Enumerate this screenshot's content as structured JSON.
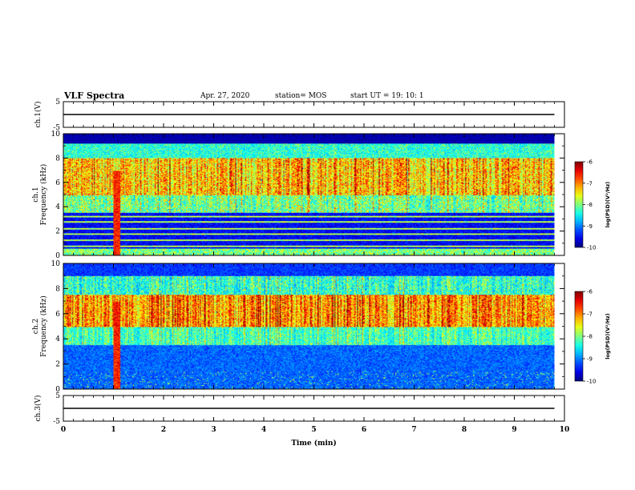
{
  "header": {
    "title": "VLF Spectra",
    "date": "Apr. 27, 2020",
    "station": "station= MOS",
    "start": "start  UT =   19: 10: 1"
  },
  "chart_data": {
    "type": "heatmap",
    "xlabel": "Time  (min)",
    "xlim": [
      0,
      10
    ],
    "x_ticks": [
      "0",
      "1",
      "2",
      "3",
      "4",
      "5",
      "6",
      "7",
      "8",
      "9",
      "10"
    ],
    "panels": [
      {
        "id": "ch1-waveform",
        "type": "line",
        "ylabel": "ch.1(V)",
        "ylim": [
          -5,
          5
        ],
        "y_ticks": [
          "5",
          "-5"
        ],
        "value": 0,
        "x_end": 9.8
      },
      {
        "id": "ch1-spectrogram",
        "type": "heatmap",
        "ylabel": "ch.1\nFrequency (kHz)",
        "ylim": [
          0,
          10
        ],
        "y_ticks": [
          "0",
          "2",
          "4",
          "6",
          "8",
          "10"
        ],
        "x_end": 9.8,
        "intense_band_khz": [
          5,
          8
        ],
        "broadband_event_min": 1.05,
        "colorbar": {
          "label": "log(PSD)(V²/Hz)",
          "range": [
            -10,
            -6
          ],
          "ticks": [
            "-6",
            "-7",
            "-8",
            "-9",
            "-10"
          ]
        }
      },
      {
        "id": "ch2-spectrogram",
        "type": "heatmap",
        "ylabel": "ch.2\nFrequency (kHz)",
        "ylim": [
          0,
          10
        ],
        "y_ticks": [
          "0",
          "2",
          "4",
          "6",
          "8",
          "10"
        ],
        "x_end": 9.8,
        "intense_band_khz": [
          5,
          7.5
        ],
        "broadband_event_min": 1.05,
        "colorbar": {
          "label": "log(PSD)(V²/Hz)",
          "range": [
            -10,
            -6
          ],
          "ticks": [
            "-6",
            "-7",
            "-8",
            "-9",
            "-10"
          ]
        }
      },
      {
        "id": "ch3-waveform",
        "type": "line",
        "ylabel": "ch.3(V)",
        "ylim": [
          -5,
          5
        ],
        "y_ticks": [
          "5",
          "-5"
        ],
        "value": 0,
        "x_end": 9.8
      }
    ]
  }
}
